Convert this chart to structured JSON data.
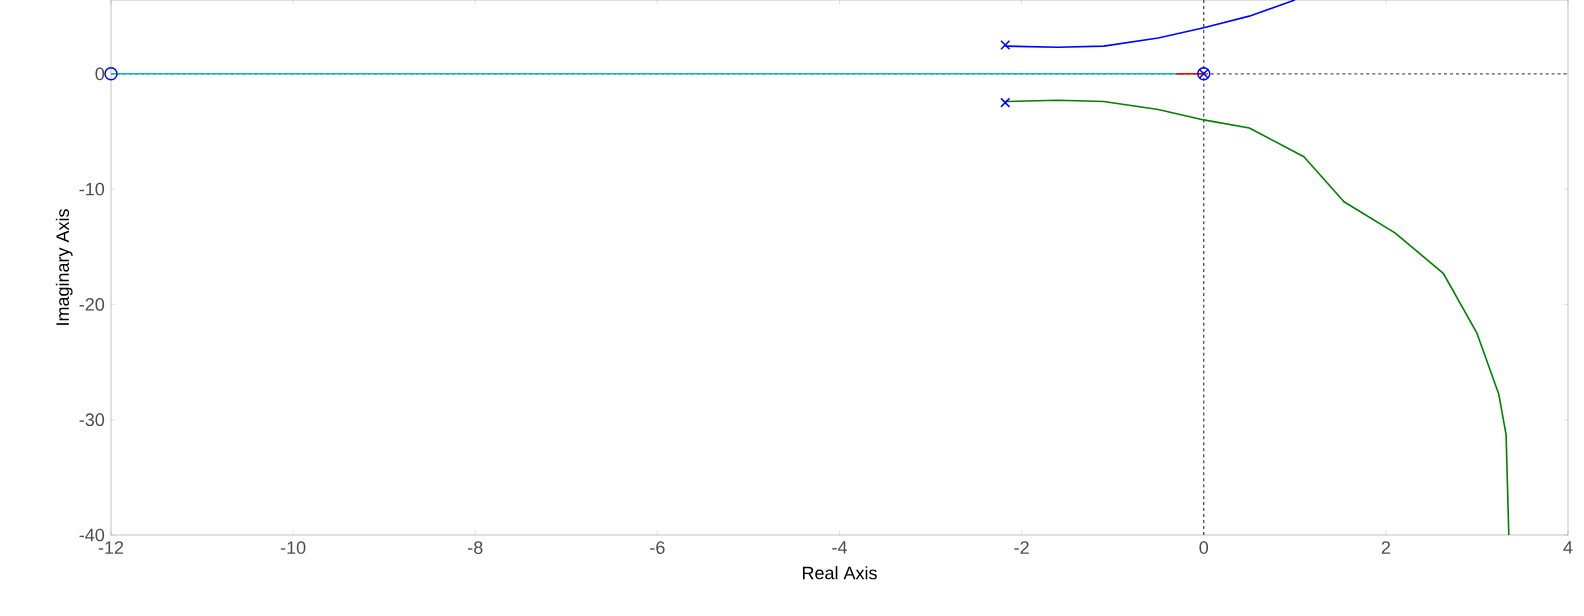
{
  "chart_data": {
    "type": "line",
    "xlabel": "Real Axis",
    "ylabel": "Imaginary Axis",
    "xlim": [
      -12,
      4
    ],
    "ylim": [
      -40,
      6.4
    ],
    "xticks": [
      -12,
      -10,
      -8,
      -6,
      -4,
      -2,
      0,
      2,
      4
    ],
    "yticks": [
      -40,
      -30,
      -20,
      -10,
      0
    ],
    "grid": false,
    "ref_lines": [
      {
        "axis": "x",
        "value": 0,
        "color": "#404040",
        "line_style": "dashed"
      },
      {
        "axis": "y",
        "value": 0,
        "color": "#555555",
        "line_style": "dashed"
      }
    ],
    "series": [
      {
        "color": "#00bfbf",
        "x": [
          -12,
          -0.2
        ],
        "values": [
          0,
          0
        ]
      },
      {
        "color": "#ff0000",
        "x": [
          -0.3,
          0
        ],
        "values": [
          0,
          0
        ]
      },
      {
        "color": "#0000ff",
        "x": [
          -2.18,
          -1.6,
          -1.1,
          -0.5,
          0,
          0.5,
          1.0
        ],
        "values": [
          2.4,
          2.3,
          2.4,
          3.1,
          4.0,
          5.0,
          6.4
        ]
      },
      {
        "color": "#008000",
        "x": [
          -2.18,
          -1.6,
          -1.1,
          -0.5,
          0,
          0.5,
          1.1,
          1.54,
          2.1,
          2.63,
          3.0,
          3.24,
          3.32,
          3.35
        ],
        "values": [
          -2.4,
          -2.3,
          -2.4,
          -3.1,
          -4.0,
          -4.7,
          -7.2,
          -11.1,
          -13.8,
          -17.3,
          -22.5,
          -27.8,
          -31.3,
          -40
        ]
      },
      {
        "type": "scatter",
        "marker": "cross",
        "color": "#0000ff",
        "x": [
          -2.18,
          -2.18,
          0
        ],
        "values": [
          2.5,
          -2.5,
          0
        ]
      },
      {
        "type": "scatter",
        "marker": "circle",
        "color": "#0000ff",
        "x": [
          -12,
          0
        ],
        "values": [
          0,
          0
        ]
      }
    ]
  }
}
